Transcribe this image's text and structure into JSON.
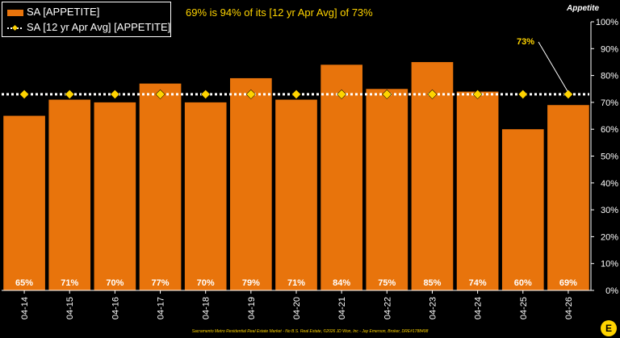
{
  "chart_data": {
    "type": "bar",
    "categories": [
      "04-14",
      "04-15",
      "04-16",
      "04-17",
      "04-18",
      "04-19",
      "04-20",
      "04-21",
      "04-22",
      "04-23",
      "04-24",
      "04-25",
      "04-26"
    ],
    "series": [
      {
        "name": "SA [APPETITE]",
        "type": "bar",
        "values": [
          65,
          71,
          70,
          77,
          70,
          79,
          71,
          84,
          75,
          85,
          74,
          60,
          69
        ],
        "color": "#e8740c"
      },
      {
        "name": "SA [12 yr Apr Avg] [APPETITE]",
        "type": "line",
        "values": [
          73,
          73,
          73,
          73,
          73,
          73,
          73,
          73,
          73,
          73,
          73,
          73,
          73
        ],
        "color": "#ffffff",
        "marker_color": "#ffd400"
      }
    ],
    "data_labels": [
      "65%",
      "71%",
      "70%",
      "77%",
      "70%",
      "79%",
      "71%",
      "84%",
      "75%",
      "85%",
      "74%",
      "60%",
      "69%"
    ],
    "title": "69% is 94% of its [12 yr Apr Avg] of 73%",
    "ylabel": "Appetite",
    "ylim": [
      0,
      100
    ],
    "yticks": [
      "0%",
      "10%",
      "20%",
      "30%",
      "40%",
      "50%",
      "60%",
      "70%",
      "80%",
      "90%",
      "100%"
    ],
    "annotation": "73%",
    "legend_position": "top-left",
    "grid": false
  },
  "footer": "Sacramento Metro Residential Real Estate Market - No B.S. Real Estate, ©2026 JD Won, Inc - Jay Emerson, Broker, DRE#1788498",
  "brand_letter": "E"
}
